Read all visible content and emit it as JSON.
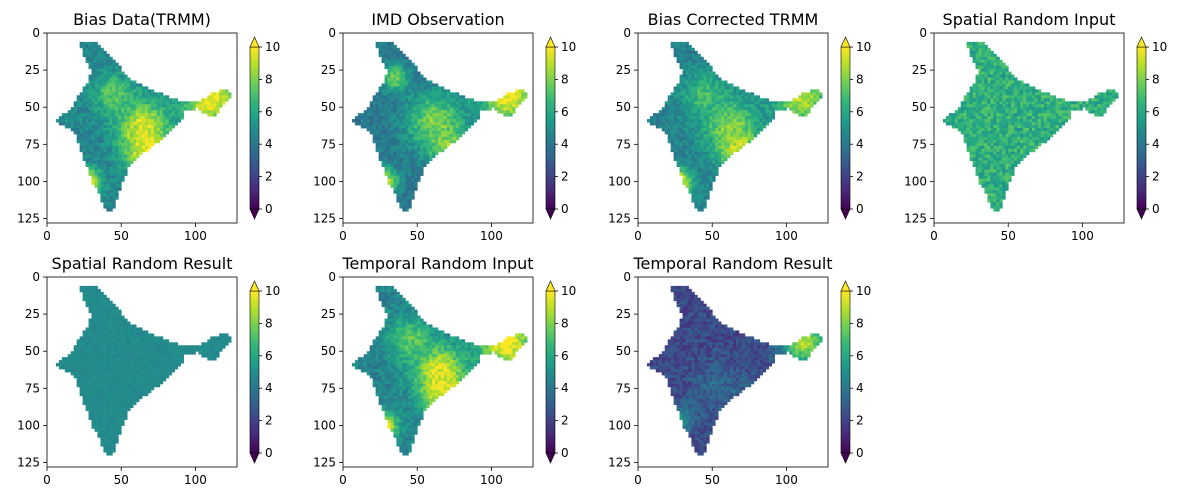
{
  "chart_data": [
    {
      "type": "heatmap",
      "title": "Bias Data(TRMM)",
      "xlim": [
        0,
        128
      ],
      "ylim": [
        128,
        0
      ],
      "xticks": [
        0,
        50,
        100
      ],
      "yticks": [
        0,
        25,
        50,
        75,
        100,
        125
      ],
      "cmap": "viridis",
      "clim": [
        0,
        10
      ],
      "colorbar_ticks": [
        0,
        2,
        4,
        6,
        8,
        10
      ],
      "colorbar_extend": "both",
      "base_value": 4.5,
      "hotspots": [
        {
          "x": 65,
          "y": 63,
          "v": 9.5,
          "r": 12
        },
        {
          "x": 67,
          "y": 80,
          "v": 9.8,
          "r": 10
        },
        {
          "x": 110,
          "y": 44,
          "v": 10,
          "r": 13
        },
        {
          "x": 28,
          "y": 100,
          "v": 10,
          "r": 6
        },
        {
          "x": 45,
          "y": 42,
          "v": 7.5,
          "r": 10
        }
      ]
    },
    {
      "type": "heatmap",
      "title": "IMD Observation",
      "xlim": [
        0,
        128
      ],
      "ylim": [
        128,
        0
      ],
      "xticks": [
        0,
        50,
        100
      ],
      "yticks": [
        0,
        25,
        50,
        75,
        100,
        125
      ],
      "cmap": "viridis",
      "clim": [
        0,
        10
      ],
      "colorbar_ticks": [
        0,
        2,
        4,
        6,
        8,
        10
      ],
      "colorbar_extend": "both",
      "base_value": 4.0,
      "hotspots": [
        {
          "x": 62,
          "y": 60,
          "v": 8,
          "r": 14
        },
        {
          "x": 72,
          "y": 78,
          "v": 8.5,
          "r": 9
        },
        {
          "x": 112,
          "y": 42,
          "v": 10,
          "r": 13
        },
        {
          "x": 29,
          "y": 100,
          "v": 9,
          "r": 6
        },
        {
          "x": 35,
          "y": 30,
          "v": 8,
          "r": 6
        }
      ]
    },
    {
      "type": "heatmap",
      "title": "Bias Corrected TRMM",
      "xlim": [
        0,
        128
      ],
      "ylim": [
        128,
        0
      ],
      "xticks": [
        0,
        50,
        100
      ],
      "yticks": [
        0,
        25,
        50,
        75,
        100,
        125
      ],
      "cmap": "viridis",
      "clim": [
        0,
        10
      ],
      "colorbar_ticks": [
        0,
        2,
        4,
        6,
        8,
        10
      ],
      "colorbar_extend": "both",
      "base_value": 4.5,
      "hotspots": [
        {
          "x": 62,
          "y": 62,
          "v": 8,
          "r": 13
        },
        {
          "x": 68,
          "y": 80,
          "v": 9.5,
          "r": 9
        },
        {
          "x": 110,
          "y": 44,
          "v": 9,
          "r": 12
        },
        {
          "x": 28,
          "y": 100,
          "v": 10,
          "r": 6
        },
        {
          "x": 45,
          "y": 42,
          "v": 7,
          "r": 10
        }
      ]
    },
    {
      "type": "heatmap",
      "title": "Spatial Random Input",
      "xlim": [
        0,
        128
      ],
      "ylim": [
        128,
        0
      ],
      "xticks": [
        0,
        50,
        100
      ],
      "yticks": [
        0,
        25,
        50,
        75,
        100,
        125
      ],
      "cmap": "viridis",
      "clim": [
        0,
        10
      ],
      "colorbar_ticks": [
        0,
        2,
        4,
        6,
        8,
        10
      ],
      "colorbar_extend": "both",
      "base_value": 6.3,
      "hotspots": []
    },
    {
      "type": "heatmap",
      "title": "Spatial Random Result",
      "xlim": [
        0,
        128
      ],
      "ylim": [
        128,
        0
      ],
      "xticks": [
        0,
        50,
        100
      ],
      "yticks": [
        0,
        25,
        50,
        75,
        100,
        125
      ],
      "cmap": "viridis",
      "clim": [
        0,
        10
      ],
      "colorbar_ticks": [
        0,
        2,
        4,
        6,
        8,
        10
      ],
      "colorbar_extend": "both",
      "base_value": 4.8,
      "hotspots": []
    },
    {
      "type": "heatmap",
      "title": "Temporal Random Input",
      "xlim": [
        0,
        128
      ],
      "ylim": [
        128,
        0
      ],
      "xticks": [
        0,
        50,
        100
      ],
      "yticks": [
        0,
        25,
        50,
        75,
        100,
        125
      ],
      "cmap": "viridis",
      "clim": [
        0,
        10
      ],
      "colorbar_ticks": [
        0,
        2,
        4,
        6,
        8,
        10
      ],
      "colorbar_extend": "both",
      "base_value": 4.5,
      "hotspots": [
        {
          "x": 65,
          "y": 63,
          "v": 9.5,
          "r": 12
        },
        {
          "x": 67,
          "y": 80,
          "v": 9.8,
          "r": 10
        },
        {
          "x": 110,
          "y": 44,
          "v": 10,
          "r": 13
        },
        {
          "x": 28,
          "y": 100,
          "v": 10,
          "r": 6
        },
        {
          "x": 45,
          "y": 42,
          "v": 7.5,
          "r": 10
        }
      ]
    },
    {
      "type": "heatmap",
      "title": "Temporal Random Result",
      "xlim": [
        0,
        128
      ],
      "ylim": [
        128,
        0
      ],
      "xticks": [
        0,
        50,
        100
      ],
      "yticks": [
        0,
        25,
        50,
        75,
        100,
        125
      ],
      "cmap": "viridis",
      "clim": [
        0,
        10
      ],
      "colorbar_ticks": [
        0,
        2,
        4,
        6,
        8,
        10
      ],
      "colorbar_extend": "both",
      "base_value": 2.2,
      "hotspots": [
        {
          "x": 112,
          "y": 44,
          "v": 9,
          "r": 11
        },
        {
          "x": 30,
          "y": 95,
          "v": 5,
          "r": 6
        },
        {
          "x": 55,
          "y": 75,
          "v": 3.5,
          "r": 12
        }
      ]
    }
  ],
  "colormap": {
    "name": "viridis",
    "stops": [
      "#440154",
      "#482878",
      "#3e4989",
      "#31688e",
      "#26828e",
      "#1f9e89",
      "#35b779",
      "#6ece58",
      "#b5de2b",
      "#fde725"
    ]
  },
  "india_outline": [
    [
      22,
      7
    ],
    [
      30,
      5
    ],
    [
      36,
      8
    ],
    [
      40,
      13
    ],
    [
      45,
      18
    ],
    [
      50,
      24
    ],
    [
      55,
      30
    ],
    [
      60,
      33
    ],
    [
      70,
      38
    ],
    [
      80,
      42
    ],
    [
      88,
      45
    ],
    [
      92,
      47
    ],
    [
      100,
      46
    ],
    [
      108,
      44
    ],
    [
      112,
      40
    ],
    [
      122,
      38
    ],
    [
      126,
      42
    ],
    [
      120,
      48
    ],
    [
      116,
      52
    ],
    [
      112,
      57
    ],
    [
      106,
      54
    ],
    [
      102,
      50
    ],
    [
      98,
      52
    ],
    [
      92,
      51
    ],
    [
      92,
      58
    ],
    [
      88,
      62
    ],
    [
      80,
      70
    ],
    [
      70,
      77
    ],
    [
      62,
      83
    ],
    [
      55,
      90
    ],
    [
      52,
      98
    ],
    [
      48,
      110
    ],
    [
      45,
      118
    ],
    [
      42,
      121
    ],
    [
      38,
      118
    ],
    [
      35,
      108
    ],
    [
      30,
      100
    ],
    [
      27,
      90
    ],
    [
      23,
      80
    ],
    [
      20,
      70
    ],
    [
      15,
      64
    ],
    [
      6,
      60
    ],
    [
      8,
      56
    ],
    [
      14,
      54
    ],
    [
      18,
      50
    ],
    [
      20,
      44
    ],
    [
      24,
      38
    ],
    [
      28,
      32
    ],
    [
      30,
      26
    ],
    [
      26,
      18
    ],
    [
      24,
      12
    ]
  ]
}
